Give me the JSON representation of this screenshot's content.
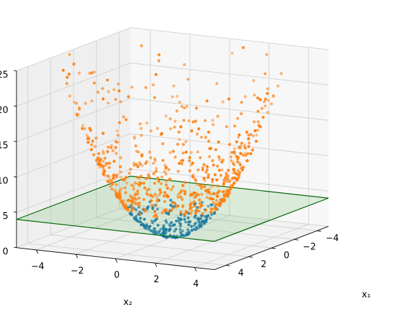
{
  "chart_data": {
    "type": "scatter",
    "title": "",
    "xlabel": "x₁",
    "ylabel": "x₂",
    "zlabel": "",
    "xlim": [
      -5,
      5
    ],
    "ylim": [
      -5,
      5
    ],
    "zlim": [
      0,
      25
    ],
    "grid": true,
    "x_ticks": [
      "-4",
      "-2",
      "0",
      "2",
      "4"
    ],
    "y_ticks": [
      "-4",
      "-2",
      "0",
      "2",
      "4"
    ],
    "z_ticks": [
      "0",
      "5",
      "10",
      "15",
      "20",
      "25"
    ],
    "plane": {
      "z": 4,
      "x_range": [
        -5,
        5
      ],
      "y_range": [
        -5,
        5
      ],
      "edge_color": "#006400",
      "fill_color": "#2ca02c"
    },
    "series": [
      {
        "color": "#1f77b4",
        "description": "points with x1^2 + x2^2 below 4, lifted onto the paraboloid",
        "count": 220
      },
      {
        "color": "#ff7f0e",
        "description": "points outside radius 2, lifted onto the paraboloid",
        "count": 650
      }
    ],
    "surface": "z = x1^2 + x2^2"
  }
}
